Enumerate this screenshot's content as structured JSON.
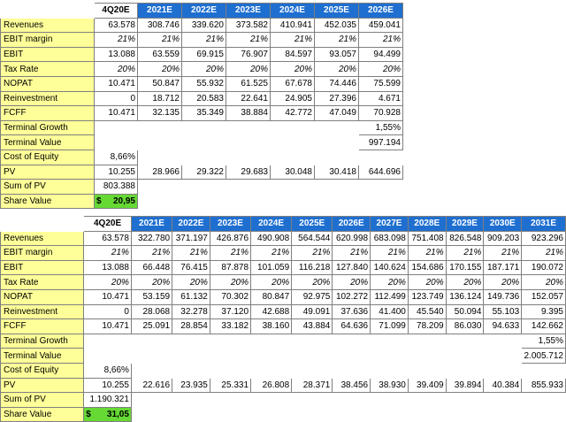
{
  "table1": {
    "headers": [
      "",
      "4Q20E",
      "2021E",
      "2022E",
      "2023E",
      "2024E",
      "2025E",
      "2026E"
    ],
    "rows": [
      {
        "label": "Revenues",
        "style": "num",
        "values": [
          "63.578",
          "308.746",
          "339.620",
          "373.582",
          "410.941",
          "452.035",
          "459.041"
        ]
      },
      {
        "label": "EBIT margin",
        "style": "it",
        "values": [
          "21%",
          "21%",
          "21%",
          "21%",
          "21%",
          "21%",
          "21%"
        ]
      },
      {
        "label": "EBIT",
        "style": "num",
        "values": [
          "13.088",
          "63.559",
          "69.915",
          "76.907",
          "84.597",
          "93.057",
          "94.499"
        ]
      },
      {
        "label": "Tax Rate",
        "style": "it",
        "values": [
          "20%",
          "20%",
          "20%",
          "20%",
          "20%",
          "20%",
          "20%"
        ]
      },
      {
        "label": "NOPAT",
        "style": "num",
        "values": [
          "10.471",
          "50.847",
          "55.932",
          "61.525",
          "67.678",
          "74.446",
          "75.599"
        ]
      },
      {
        "label": "Reinvestment",
        "style": "num",
        "values": [
          "0",
          "18.712",
          "20.583",
          "22.641",
          "24.905",
          "27.396",
          "4.671"
        ]
      },
      {
        "label": "FCFF",
        "style": "num",
        "values": [
          "10.471",
          "32.135",
          "35.349",
          "38.884",
          "42.772",
          "47.049",
          "70.928"
        ]
      },
      {
        "label": "Terminal Growth",
        "style": "num",
        "values": [
          "",
          "",
          "",
          "",
          "",
          "",
          "1,55%"
        ]
      },
      {
        "label": "Terminal Value",
        "style": "num",
        "values": [
          "",
          "",
          "",
          "",
          "",
          "",
          "997.194"
        ]
      },
      {
        "label": "Cost of Equity",
        "style": "num",
        "values": [
          "8,66%",
          "",
          "",
          "",
          "",
          "",
          ""
        ]
      },
      {
        "label": "PV",
        "style": "num",
        "values": [
          "10.255",
          "28.966",
          "29.322",
          "29.683",
          "30.048",
          "30.418",
          "644.696"
        ]
      },
      {
        "label": "Sum of PV",
        "style": "num",
        "values": [
          "803.388",
          "",
          "",
          "",
          "",
          "",
          ""
        ]
      }
    ],
    "share_value": {
      "label": "Share Value",
      "currency": "$",
      "value": "20,95"
    }
  },
  "table2": {
    "headers": [
      "",
      "4Q20E",
      "2021E",
      "2022E",
      "2023E",
      "2024E",
      "2025E",
      "2026E",
      "2027E",
      "2028E",
      "2029E",
      "2030E",
      "2031E"
    ],
    "rows": [
      {
        "label": "Revenues",
        "style": "num",
        "values": [
          "63.578",
          "322.780",
          "371.197",
          "426.876",
          "490.908",
          "564.544",
          "620.998",
          "683.098",
          "751.408",
          "826.548",
          "909.203",
          "923.296"
        ]
      },
      {
        "label": "EBIT margin",
        "style": "it",
        "values": [
          "21%",
          "21%",
          "21%",
          "21%",
          "21%",
          "21%",
          "21%",
          "21%",
          "21%",
          "21%",
          "21%",
          "21%"
        ]
      },
      {
        "label": "EBIT",
        "style": "num",
        "values": [
          "13.088",
          "66.448",
          "76.415",
          "87.878",
          "101.059",
          "116.218",
          "127.840",
          "140.624",
          "154.686",
          "170.155",
          "187.171",
          "190.072"
        ]
      },
      {
        "label": "Tax Rate",
        "style": "it",
        "values": [
          "20%",
          "20%",
          "20%",
          "20%",
          "20%",
          "20%",
          "20%",
          "20%",
          "20%",
          "20%",
          "20%",
          "20%"
        ]
      },
      {
        "label": "NOPAT",
        "style": "num",
        "values": [
          "10.471",
          "53.159",
          "61.132",
          "70.302",
          "80.847",
          "92.975",
          "102.272",
          "112.499",
          "123.749",
          "136.124",
          "149.736",
          "152.057"
        ]
      },
      {
        "label": "Reinvestment",
        "style": "num",
        "values": [
          "0",
          "28.068",
          "32.278",
          "37.120",
          "42.688",
          "49.091",
          "37.636",
          "41.400",
          "45.540",
          "50.094",
          "55.103",
          "9.395"
        ]
      },
      {
        "label": "FCFF",
        "style": "num",
        "values": [
          "10.471",
          "25.091",
          "28.854",
          "33.182",
          "38.160",
          "43.884",
          "64.636",
          "71.099",
          "78.209",
          "86.030",
          "94.633",
          "142.662"
        ]
      },
      {
        "label": "Terminal Growth",
        "style": "num",
        "values": [
          "",
          "",
          "",
          "",
          "",
          "",
          "",
          "",
          "",
          "",
          "",
          "1,55%"
        ]
      },
      {
        "label": "Terminal Value",
        "style": "num",
        "values": [
          "",
          "",
          "",
          "",
          "",
          "",
          "",
          "",
          "",
          "",
          "",
          "2.005.712"
        ]
      },
      {
        "label": "Cost of Equity",
        "style": "num",
        "values": [
          "8,66%",
          "",
          "",
          "",
          "",
          "",
          "",
          "",
          "",
          "",
          "",
          ""
        ]
      },
      {
        "label": "PV",
        "style": "num",
        "values": [
          "10.255",
          "22.616",
          "23.935",
          "25.331",
          "26.808",
          "28.371",
          "38.456",
          "38.930",
          "39.409",
          "39.894",
          "40.384",
          "855.933"
        ]
      },
      {
        "label": "Sum of PV",
        "style": "num",
        "values": [
          "1.190.321",
          "",
          "",
          "",
          "",
          "",
          "",
          "",
          "",
          "",
          "",
          ""
        ]
      }
    ],
    "share_value": {
      "label": "Share Value",
      "currency": "$",
      "value": "31,05"
    }
  }
}
